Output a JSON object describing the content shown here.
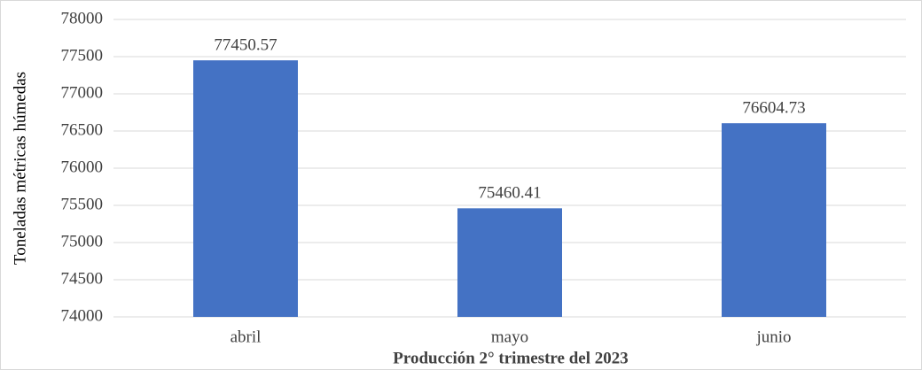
{
  "chart_data": {
    "type": "bar",
    "x_label": "Producción 2° trimestre del 2023",
    "y_label": "Toneladas métricas húmedas",
    "categories": [
      "abril",
      "mayo",
      "junio"
    ],
    "values": [
      77450.57,
      75460.41,
      76604.73
    ],
    "color": "#4472c4",
    "ylim": [
      74000,
      78000
    ],
    "yticks": [
      74000,
      74500,
      75000,
      75500,
      76000,
      76500,
      77000,
      77500,
      78000
    ],
    "grid": true
  }
}
